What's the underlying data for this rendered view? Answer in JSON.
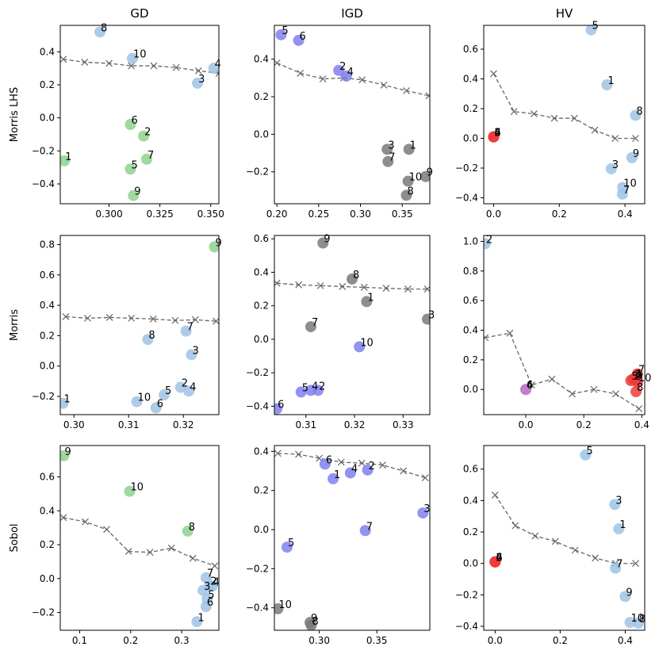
{
  "colors": {
    "green": "#8fd28f",
    "blue": "#9dc3e4",
    "purple": "#8080f0",
    "gray": "#7a7a7a",
    "red": "#ee3b3b",
    "magenta": "#c07cc8",
    "front": "#666666"
  },
  "chart_data": [
    {
      "type": "scatter",
      "row": "Morris LHS",
      "title": "GD",
      "xlim": [
        0.276,
        0.354
      ],
      "ylim": [
        -0.52,
        0.56
      ],
      "xticks": [
        0.3,
        0.325,
        0.35
      ],
      "xticklabels": [
        "0.300",
        "0.325",
        "0.350"
      ],
      "yticks": [
        -0.4,
        -0.2,
        0.0,
        0.2,
        0.4
      ],
      "yticklabels": [
        "−0.4",
        "−0.2",
        "0.0",
        "0.2",
        "0.4"
      ],
      "points": [
        {
          "label": "1",
          "x": 0.278,
          "y": -0.26,
          "color": "green"
        },
        {
          "label": "2",
          "x": 0.317,
          "y": -0.11,
          "color": "green"
        },
        {
          "label": "3",
          "x": 0.3435,
          "y": 0.21,
          "color": "blue"
        },
        {
          "label": "4",
          "x": 0.3515,
          "y": 0.3,
          "color": "blue"
        },
        {
          "label": "5",
          "x": 0.3105,
          "y": -0.31,
          "color": "green"
        },
        {
          "label": "6",
          "x": 0.3105,
          "y": -0.04,
          "color": "green"
        },
        {
          "label": "7",
          "x": 0.3185,
          "y": -0.25,
          "color": "green"
        },
        {
          "label": "8",
          "x": 0.2955,
          "y": 0.52,
          "color": "blue"
        },
        {
          "label": "9",
          "x": 0.312,
          "y": -0.47,
          "color": "green"
        },
        {
          "label": "10",
          "x": 0.3115,
          "y": 0.36,
          "color": "blue"
        }
      ],
      "front": {
        "x": [
          0.2775,
          0.288,
          0.3,
          0.311,
          0.322,
          0.333,
          0.344,
          0.354
        ],
        "y": [
          0.355,
          0.337,
          0.33,
          0.315,
          0.315,
          0.305,
          0.285,
          0.27
        ]
      }
    },
    {
      "type": "scatter",
      "row": "Morris LHS",
      "title": "IGD",
      "xlim": [
        0.197,
        0.383
      ],
      "ylim": [
        -0.37,
        0.58
      ],
      "xticks": [
        0.2,
        0.25,
        0.3,
        0.35
      ],
      "xticklabels": [
        "0.20",
        "0.25",
        "0.30",
        "0.35"
      ],
      "yticks": [
        -0.2,
        0.0,
        0.2,
        0.4
      ],
      "yticklabels": [
        "−0.2",
        "0.0",
        "0.2",
        "0.4"
      ],
      "points": [
        {
          "label": "1",
          "x": 0.358,
          "y": -0.08,
          "color": "gray"
        },
        {
          "label": "2",
          "x": 0.274,
          "y": 0.34,
          "color": "purple"
        },
        {
          "label": "3",
          "x": 0.332,
          "y": -0.08,
          "color": "gray"
        },
        {
          "label": "4",
          "x": 0.283,
          "y": 0.31,
          "color": "purple"
        },
        {
          "label": "5",
          "x": 0.205,
          "y": 0.53,
          "color": "purple"
        },
        {
          "label": "6",
          "x": 0.226,
          "y": 0.5,
          "color": "purple"
        },
        {
          "label": "7",
          "x": 0.333,
          "y": -0.145,
          "color": "gray"
        },
        {
          "label": "8",
          "x": 0.355,
          "y": -0.325,
          "color": "gray"
        },
        {
          "label": "9",
          "x": 0.378,
          "y": -0.225,
          "color": "gray"
        },
        {
          "label": "10",
          "x": 0.357,
          "y": -0.25,
          "color": "gray"
        }
      ],
      "front": {
        "x": [
          0.2,
          0.228,
          0.255,
          0.28,
          0.302,
          0.328,
          0.355,
          0.382
        ],
        "y": [
          0.38,
          0.325,
          0.295,
          0.3,
          0.29,
          0.262,
          0.232,
          0.205
        ]
      }
    },
    {
      "type": "scatter",
      "row": "Morris LHS",
      "title": "HV",
      "xlim": [
        -0.03,
        0.46
      ],
      "ylim": [
        -0.44,
        0.76
      ],
      "xticks": [
        0.0,
        0.2,
        0.4
      ],
      "xticklabels": [
        "0.0",
        "0.2",
        "0.4"
      ],
      "yticks": [
        -0.4,
        -0.2,
        0.0,
        0.2,
        0.4,
        0.6
      ],
      "yticklabels": [
        "−0.4",
        "−0.2",
        "0.0",
        "0.2",
        "0.4",
        "0.6"
      ],
      "points": [
        {
          "label": "1",
          "x": 0.345,
          "y": 0.36,
          "color": "blue"
        },
        {
          "label": "2",
          "x": 0.0,
          "y": 0.01,
          "color": "red"
        },
        {
          "label": "3",
          "x": 0.358,
          "y": -0.205,
          "color": "blue"
        },
        {
          "label": "4",
          "x": 0.0,
          "y": 0.01,
          "color": "red"
        },
        {
          "label": "5",
          "x": 0.297,
          "y": 0.73,
          "color": "blue"
        },
        {
          "label": "6",
          "x": 0.0,
          "y": 0.01,
          "color": "red"
        },
        {
          "label": "7",
          "x": 0.392,
          "y": -0.375,
          "color": "blue"
        },
        {
          "label": "8",
          "x": 0.432,
          "y": 0.155,
          "color": "blue"
        },
        {
          "label": "9",
          "x": 0.421,
          "y": -0.13,
          "color": "blue"
        },
        {
          "label": "10",
          "x": 0.393,
          "y": -0.33,
          "color": "blue"
        }
      ],
      "front": {
        "x": [
          0.0,
          0.062,
          0.123,
          0.185,
          0.246,
          0.308,
          0.37,
          0.432
        ],
        "y": [
          0.435,
          0.18,
          0.165,
          0.135,
          0.135,
          0.055,
          0.0,
          0.0
        ]
      }
    },
    {
      "type": "scatter",
      "row": "Morris",
      "title": "GD",
      "xlim": [
        0.2975,
        0.3265
      ],
      "ylim": [
        -0.32,
        0.86
      ],
      "xticks": [
        0.3,
        0.31,
        0.32
      ],
      "xticklabels": [
        "0.30",
        "0.31",
        "0.32"
      ],
      "yticks": [
        -0.2,
        0.0,
        0.2,
        0.4,
        0.6,
        0.8
      ],
      "yticklabels": [
        "−0.2",
        "0.0",
        "0.2",
        "0.4",
        "0.6",
        "0.8"
      ],
      "points": [
        {
          "label": "1",
          "x": 0.298,
          "y": -0.245,
          "color": "blue"
        },
        {
          "label": "2",
          "x": 0.3195,
          "y": -0.14,
          "color": "blue"
        },
        {
          "label": "3",
          "x": 0.3215,
          "y": 0.075,
          "color": "blue"
        },
        {
          "label": "4",
          "x": 0.321,
          "y": -0.165,
          "color": "blue"
        },
        {
          "label": "5",
          "x": 0.3165,
          "y": -0.19,
          "color": "blue"
        },
        {
          "label": "6",
          "x": 0.315,
          "y": -0.275,
          "color": "blue"
        },
        {
          "label": "7",
          "x": 0.3205,
          "y": 0.23,
          "color": "blue"
        },
        {
          "label": "8",
          "x": 0.3135,
          "y": 0.175,
          "color": "blue"
        },
        {
          "label": "9",
          "x": 0.3257,
          "y": 0.785,
          "color": "green"
        },
        {
          "label": "10",
          "x": 0.3115,
          "y": -0.235,
          "color": "blue"
        }
      ],
      "front": {
        "x": [
          0.2985,
          0.3025,
          0.3065,
          0.3105,
          0.3145,
          0.3185,
          0.3222,
          0.326
        ],
        "y": [
          0.325,
          0.315,
          0.32,
          0.315,
          0.31,
          0.3,
          0.305,
          0.295
        ]
      }
    },
    {
      "type": "scatter",
      "row": "Morris",
      "title": "IGD",
      "xlim": [
        0.3035,
        0.3355
      ],
      "ylim": [
        -0.45,
        0.62
      ],
      "xticks": [
        0.31,
        0.32,
        0.33
      ],
      "xticklabels": [
        "0.31",
        "0.32",
        "0.33"
      ],
      "yticks": [
        -0.4,
        -0.2,
        0.0,
        0.2,
        0.4,
        0.6
      ],
      "yticklabels": [
        "−0.4",
        "−0.2",
        "0.0",
        "0.2",
        "0.4",
        "0.6"
      ],
      "points": [
        {
          "label": "1",
          "x": 0.3225,
          "y": 0.225,
          "color": "gray"
        },
        {
          "label": "2",
          "x": 0.3125,
          "y": -0.305,
          "color": "purple"
        },
        {
          "label": "3",
          "x": 0.335,
          "y": 0.12,
          "color": "gray"
        },
        {
          "label": "4",
          "x": 0.311,
          "y": -0.305,
          "color": "purple"
        },
        {
          "label": "5",
          "x": 0.309,
          "y": -0.315,
          "color": "purple"
        },
        {
          "label": "6",
          "x": 0.304,
          "y": -0.415,
          "color": "purple"
        },
        {
          "label": "7",
          "x": 0.311,
          "y": 0.075,
          "color": "gray"
        },
        {
          "label": "8",
          "x": 0.3195,
          "y": 0.36,
          "color": "gray"
        },
        {
          "label": "9",
          "x": 0.3135,
          "y": 0.575,
          "color": "gray"
        },
        {
          "label": "10",
          "x": 0.321,
          "y": -0.045,
          "color": "purple"
        }
      ],
      "front": {
        "x": [
          0.304,
          0.3085,
          0.313,
          0.3175,
          0.322,
          0.3265,
          0.331,
          0.335
        ],
        "y": [
          0.335,
          0.325,
          0.32,
          0.315,
          0.31,
          0.305,
          0.3,
          0.3
        ]
      }
    },
    {
      "type": "scatter",
      "row": "Morris",
      "title": "HV",
      "xlim": [
        -0.145,
        0.41
      ],
      "ylim": [
        -0.17,
        1.04
      ],
      "xticks": [
        0.0,
        0.2,
        0.4
      ],
      "xticklabels": [
        "0.0",
        "0.2",
        "0.4"
      ],
      "yticks": [
        0.0,
        0.2,
        0.4,
        0.6,
        0.8,
        1.0
      ],
      "yticklabels": [
        "0.0",
        "0.2",
        "0.4",
        "0.6",
        "0.8",
        "1.0"
      ],
      "points": [
        {
          "label": "1",
          "x": 0.378,
          "y": 0.075,
          "color": "red"
        },
        {
          "label": "2",
          "x": -0.14,
          "y": 0.985,
          "color": "blue"
        },
        {
          "label": "3",
          "x": 0.37,
          "y": 0.07,
          "color": "red"
        },
        {
          "label": "4",
          "x": 0.0,
          "y": 0.0,
          "color": "magenta"
        },
        {
          "label": "5",
          "x": 0.362,
          "y": 0.06,
          "color": "red"
        },
        {
          "label": "6",
          "x": 0.0,
          "y": 0.0,
          "color": "magenta"
        },
        {
          "label": "7",
          "x": 0.385,
          "y": 0.105,
          "color": "red"
        },
        {
          "label": "8",
          "x": 0.38,
          "y": -0.015,
          "color": "red"
        },
        {
          "label": "9",
          "x": 0.375,
          "y": 0.06,
          "color": "red"
        },
        {
          "label": "10",
          "x": 0.385,
          "y": 0.05,
          "color": "red"
        }
      ],
      "front": {
        "x": [
          -0.14,
          -0.055,
          0.02,
          0.09,
          0.16,
          0.235,
          0.31,
          0.39
        ],
        "y": [
          0.35,
          0.38,
          0.03,
          0.07,
          -0.03,
          0.0,
          -0.03,
          -0.13
        ]
      }
    },
    {
      "type": "scatter",
      "row": "Sobol",
      "title": "GD",
      "xlim": [
        0.062,
        0.373
      ],
      "ylim": [
        -0.305,
        0.785
      ],
      "xticks": [
        0.1,
        0.2,
        0.3
      ],
      "xticklabels": [
        "0.1",
        "0.2",
        "0.3"
      ],
      "yticks": [
        -0.2,
        0.0,
        0.2,
        0.4,
        0.6
      ],
      "yticklabels": [
        "−0.2",
        "0.0",
        "0.2",
        "0.4",
        "0.6"
      ],
      "points": [
        {
          "label": "1",
          "x": 0.33,
          "y": -0.255,
          "color": "blue"
        },
        {
          "label": "2",
          "x": 0.355,
          "y": -0.04,
          "color": "blue"
        },
        {
          "label": "3",
          "x": 0.342,
          "y": -0.07,
          "color": "blue"
        },
        {
          "label": "4",
          "x": 0.36,
          "y": -0.045,
          "color": "blue"
        },
        {
          "label": "5",
          "x": 0.35,
          "y": -0.12,
          "color": "blue"
        },
        {
          "label": "6",
          "x": 0.348,
          "y": -0.165,
          "color": "blue"
        },
        {
          "label": "7",
          "x": 0.348,
          "y": 0.005,
          "color": "blue"
        },
        {
          "label": "8",
          "x": 0.312,
          "y": 0.28,
          "color": "green"
        },
        {
          "label": "9",
          "x": 0.069,
          "y": 0.725,
          "color": "green"
        },
        {
          "label": "10",
          "x": 0.198,
          "y": 0.515,
          "color": "green"
        }
      ],
      "front": {
        "x": [
          0.068,
          0.111,
          0.153,
          0.196,
          0.238,
          0.28,
          0.322,
          0.365
        ],
        "y": [
          0.36,
          0.335,
          0.29,
          0.16,
          0.155,
          0.18,
          0.12,
          0.075
        ]
      }
    },
    {
      "type": "scatter",
      "row": "Sobol",
      "title": "IGD",
      "xlim": [
        0.261,
        0.396
      ],
      "ylim": [
        -0.515,
        0.43
      ],
      "xticks": [
        0.3,
        0.35
      ],
      "xticklabels": [
        "0.30",
        "0.35"
      ],
      "yticks": [
        -0.4,
        -0.2,
        0.0,
        0.2,
        0.4
      ],
      "yticklabels": [
        "−0.4",
        "−0.2",
        "0.0",
        "0.2",
        "0.4"
      ],
      "points": [
        {
          "label": "1",
          "x": 0.312,
          "y": 0.26,
          "color": "purple"
        },
        {
          "label": "2",
          "x": 0.342,
          "y": 0.305,
          "color": "purple"
        },
        {
          "label": "3",
          "x": 0.39,
          "y": 0.085,
          "color": "purple"
        },
        {
          "label": "4",
          "x": 0.327,
          "y": 0.29,
          "color": "purple"
        },
        {
          "label": "5",
          "x": 0.272,
          "y": -0.09,
          "color": "purple"
        },
        {
          "label": "6",
          "x": 0.305,
          "y": 0.335,
          "color": "purple"
        },
        {
          "label": "7",
          "x": 0.34,
          "y": -0.005,
          "color": "purple"
        },
        {
          "label": "8",
          "x": 0.293,
          "y": -0.49,
          "color": "gray"
        },
        {
          "label": "9",
          "x": 0.292,
          "y": -0.475,
          "color": "gray"
        },
        {
          "label": "10",
          "x": 0.264,
          "y": -0.405,
          "color": "gray"
        }
      ],
      "front": {
        "x": [
          0.264,
          0.282,
          0.3,
          0.319,
          0.337,
          0.355,
          0.373,
          0.392
        ],
        "y": [
          0.39,
          0.385,
          0.365,
          0.345,
          0.34,
          0.33,
          0.3,
          0.265
        ]
      }
    },
    {
      "type": "scatter",
      "row": "Sobol",
      "title": "HV",
      "xlim": [
        -0.035,
        0.46
      ],
      "ylim": [
        -0.425,
        0.75
      ],
      "xticks": [
        0.0,
        0.2,
        0.4
      ],
      "xticklabels": [
        "0.0",
        "0.2",
        "0.4"
      ],
      "yticks": [
        -0.4,
        -0.2,
        0.0,
        0.2,
        0.4,
        0.6
      ],
      "yticklabels": [
        "−0.4",
        "−0.2",
        "0.0",
        "0.2",
        "0.4",
        "0.6"
      ],
      "points": [
        {
          "label": "1",
          "x": 0.38,
          "y": 0.22,
          "color": "blue"
        },
        {
          "label": "2",
          "x": 0.0,
          "y": 0.01,
          "color": "red"
        },
        {
          "label": "3",
          "x": 0.368,
          "y": 0.375,
          "color": "blue"
        },
        {
          "label": "4",
          "x": 0.0,
          "y": 0.01,
          "color": "red"
        },
        {
          "label": "5",
          "x": 0.278,
          "y": 0.69,
          "color": "blue"
        },
        {
          "label": "6",
          "x": 0.0,
          "y": 0.01,
          "color": "red"
        },
        {
          "label": "7",
          "x": 0.37,
          "y": -0.03,
          "color": "blue"
        },
        {
          "label": "8",
          "x": 0.44,
          "y": -0.38,
          "color": "blue"
        },
        {
          "label": "9",
          "x": 0.4,
          "y": -0.21,
          "color": "blue"
        },
        {
          "label": "10",
          "x": 0.415,
          "y": -0.375,
          "color": "blue"
        }
      ],
      "front": {
        "x": [
          0.0,
          0.062,
          0.123,
          0.185,
          0.246,
          0.308,
          0.37,
          0.432
        ],
        "y": [
          0.435,
          0.24,
          0.175,
          0.14,
          0.085,
          0.035,
          0.0,
          0.0
        ]
      }
    }
  ]
}
